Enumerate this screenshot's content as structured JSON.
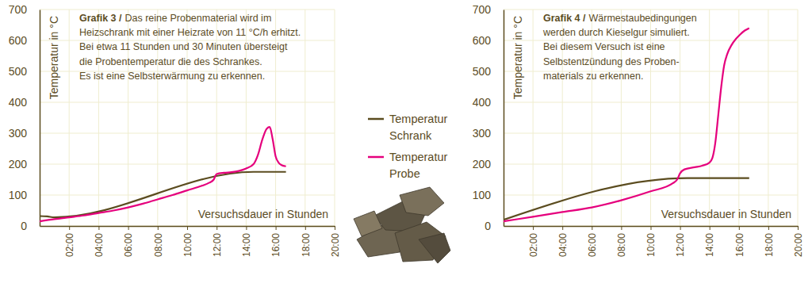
{
  "chart_data": [
    {
      "type": "line",
      "title": "Grafik 3 /",
      "subtitle": [
        "Das reine Probenmaterial wird im",
        "Heizschrank mit einer Heizrate von 11 °C/h erhitzt.",
        "Bei etwa 11 Stunden und 30 Minuten übersteigt",
        "die Probentemperatur die des Schrankes.",
        "Es ist eine Selbsterwärmung zu erkennen."
      ],
      "x_label": "Versuchsdauer in Stunden",
      "y_label": "Temperatur in °C",
      "xlim": [
        0,
        20
      ],
      "xticks": [
        {
          "value": 2,
          "label": "02:00"
        },
        {
          "value": 4,
          "label": "04:00"
        },
        {
          "value": 6,
          "label": "06:00"
        },
        {
          "value": 8,
          "label": "08:00"
        },
        {
          "value": 10,
          "label": "10:00"
        },
        {
          "value": 12,
          "label": "12:00"
        },
        {
          "value": 14,
          "label": "14:00"
        },
        {
          "value": 16,
          "label": "16:00"
        },
        {
          "value": 18,
          "label": "18:00"
        },
        {
          "value": 20,
          "label": "20:00"
        }
      ],
      "ylim": [
        0,
        700
      ],
      "yticks": [
        0,
        100,
        200,
        300,
        400,
        500,
        600,
        700
      ],
      "grid": true,
      "legend": "right",
      "series": [
        {
          "name": "Temperatur Schrank",
          "color": "#5b4c1f",
          "x": [
            0,
            0.5,
            1,
            14.5,
            16.7
          ],
          "values": [
            32,
            31,
            28,
            175,
            175
          ]
        },
        {
          "name": "Temperatur Probe",
          "color": "#e5007d",
          "x": [
            0,
            1,
            2,
            3,
            4,
            5,
            6,
            7,
            8,
            9,
            10,
            11,
            11.5,
            11.8,
            12,
            12.5,
            13,
            13.5,
            14,
            14.5,
            14.8,
            15.1,
            15.4,
            15.6,
            15.8,
            16,
            16.2,
            16.4,
            16.7
          ],
          "values": [
            15,
            22,
            28,
            34,
            42,
            50,
            60,
            72,
            86,
            100,
            115,
            130,
            140,
            150,
            168,
            172,
            174,
            178,
            186,
            200,
            230,
            280,
            315,
            320,
            280,
            225,
            205,
            197,
            193
          ]
        }
      ]
    },
    {
      "type": "line",
      "title": "Grafik 4 /",
      "subtitle": [
        "Wärmestaubedingungen",
        "werden durch Kieselgur simuliert.",
        "Bei diesem Versuch ist eine",
        "Selbstentzündung des Proben-",
        "materials zu erkennen."
      ],
      "x_label": "Versuchsdauer in Stunden",
      "y_label": "Temperatur in °C",
      "xlim": [
        0,
        20
      ],
      "xticks": [
        {
          "value": 2,
          "label": "02:00"
        },
        {
          "value": 4,
          "label": "04:00"
        },
        {
          "value": 6,
          "label": "06:00"
        },
        {
          "value": 8,
          "label": "08:00"
        },
        {
          "value": 10,
          "label": "10:00"
        },
        {
          "value": 12,
          "label": "12:00"
        },
        {
          "value": 14,
          "label": "14:00"
        },
        {
          "value": 16,
          "label": "16:00"
        },
        {
          "value": 18,
          "label": "18:00"
        },
        {
          "value": 20,
          "label": "20:00"
        }
      ],
      "ylim": [
        0,
        700
      ],
      "yticks": [
        0,
        100,
        200,
        300,
        400,
        500,
        600,
        700
      ],
      "grid": true,
      "series": [
        {
          "color": "#5b4c1f",
          "x": [
            0,
            12.5,
            16.7
          ],
          "values": [
            20,
            155,
            155
          ]
        },
        {
          "color": "#e5007d",
          "x": [
            0,
            2,
            4,
            6,
            8,
            10,
            11.5,
            11.8,
            12,
            12.3,
            13,
            13.5,
            14,
            14.2,
            14.4,
            14.6,
            14.8,
            15,
            15.2,
            15.5,
            15.8,
            16.1,
            16.4,
            16.7
          ],
          "values": [
            15,
            30,
            45,
            60,
            83,
            112,
            138,
            150,
            170,
            183,
            190,
            195,
            205,
            220,
            270,
            360,
            450,
            520,
            555,
            585,
            605,
            620,
            632,
            640
          ]
        }
      ]
    }
  ]
}
